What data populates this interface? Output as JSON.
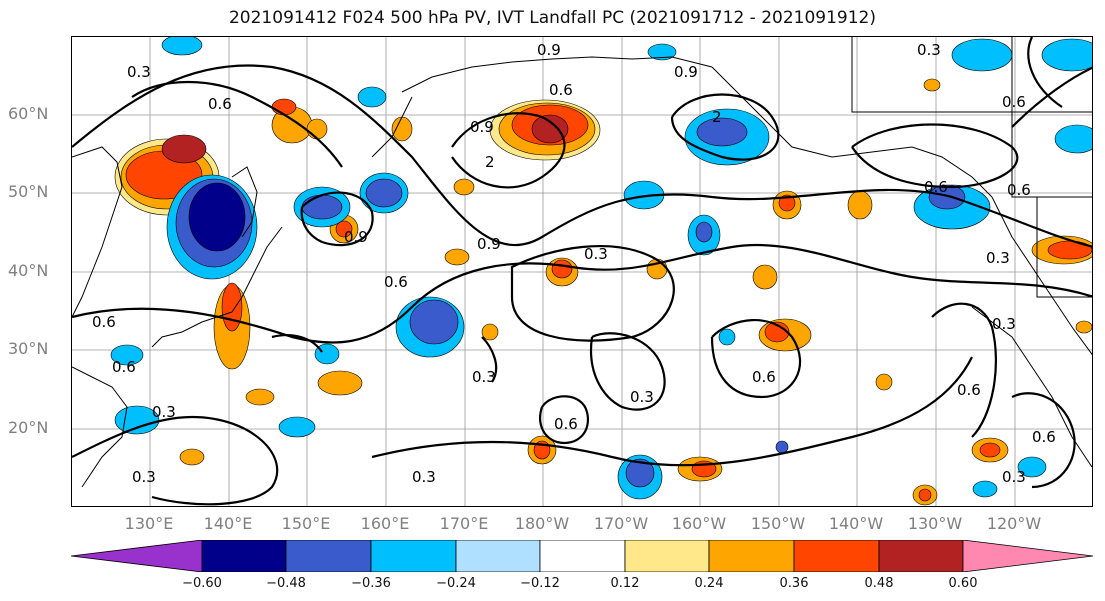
{
  "title": "2021091412 F024 500 hPa PV, IVT Landfall PC (2021091712 - 2021091912)",
  "lat_labels": [
    "60°N",
    "50°N",
    "40°N",
    "30°N",
    "20°N"
  ],
  "lon_labels": [
    "130°E",
    "140°E",
    "150°E",
    "160°E",
    "170°E",
    "180°W",
    "170°W",
    "160°W",
    "150°W",
    "140°W",
    "130°W",
    "120°W"
  ],
  "contour_labels": [
    "0.3",
    "0.6",
    "0.9",
    "2"
  ],
  "colorbar": {
    "ticks": [
      "−0.60",
      "−0.48",
      "−0.36",
      "−0.24",
      "−0.12",
      "0.12",
      "0.24",
      "0.36",
      "0.48",
      "0.60"
    ],
    "colors": [
      "#9932cc",
      "#00008b",
      "#3a5bcc",
      "#00bfff",
      "#b0e0ff",
      "#ffffff",
      "#ffe88a",
      "#ffa500",
      "#ff4500",
      "#b22222",
      "#ff88b0"
    ]
  }
}
